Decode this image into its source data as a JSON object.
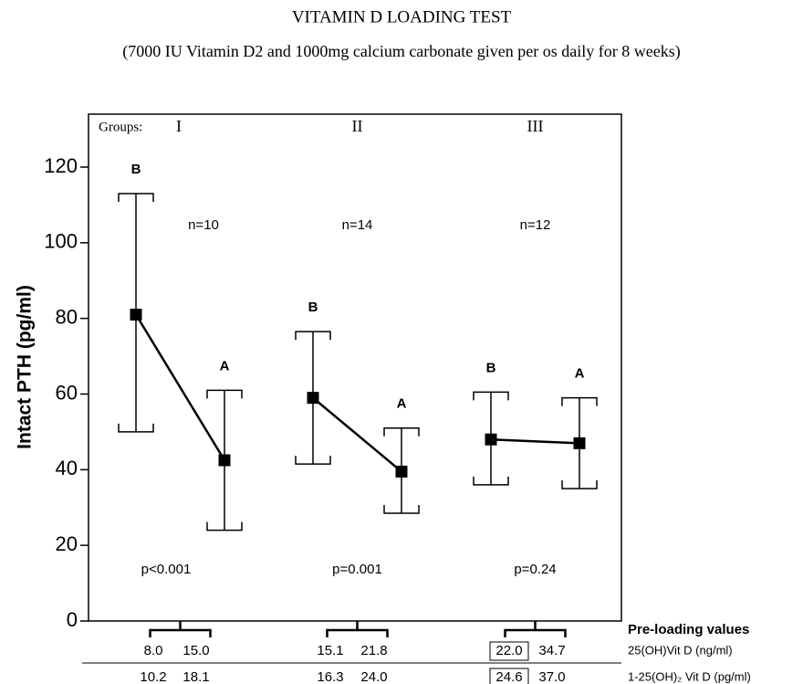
{
  "chart_data": {
    "type": "errorbar",
    "title": "VITAMIN D LOADING TEST",
    "subtitle": "(7000 IU Vitamin D2 and 1000mg calcium carbonate given per os daily for 8 weeks)",
    "y_label": "Intact PTH (pg/ml)",
    "groups_label": "Groups:",
    "groups": [
      "I",
      "II",
      "III"
    ],
    "n_labels": [
      "n=10",
      "n=14",
      "n=12"
    ],
    "p_labels": [
      "p<0.001",
      "p=0.001",
      "p=0.24"
    ],
    "series": [
      {
        "name": "B",
        "color": "#000000",
        "values": [
          81,
          59,
          48
        ],
        "lower": [
          50,
          41.5,
          36
        ],
        "upper": [
          113,
          76.5,
          60.5
        ]
      },
      {
        "name": "A",
        "color": "#000000",
        "values": [
          42.5,
          39.5,
          47
        ],
        "lower": [
          24,
          28.5,
          35
        ],
        "upper": [
          61,
          51,
          59
        ]
      }
    ],
    "ylim": [
      0,
      134
    ],
    "yticks": [
      0,
      20,
      40,
      60,
      80,
      100,
      120
    ],
    "table": {
      "title": "Pre-loading values",
      "rows": [
        {
          "label": "25(OH)Vit D (ng/ml)",
          "cells": [
            [
              "8.0",
              "15.0"
            ],
            [
              "15.1",
              "21.8"
            ],
            [
              "22.0",
              "34.7"
            ]
          ]
        },
        {
          "label": "1-25(OH)₂ Vit D (pg/ml)",
          "cells": [
            [
              "10.2",
              "18.1"
            ],
            [
              "16.3",
              "24.0"
            ],
            [
              "24.6",
              "37.0"
            ]
          ]
        }
      ]
    }
  }
}
